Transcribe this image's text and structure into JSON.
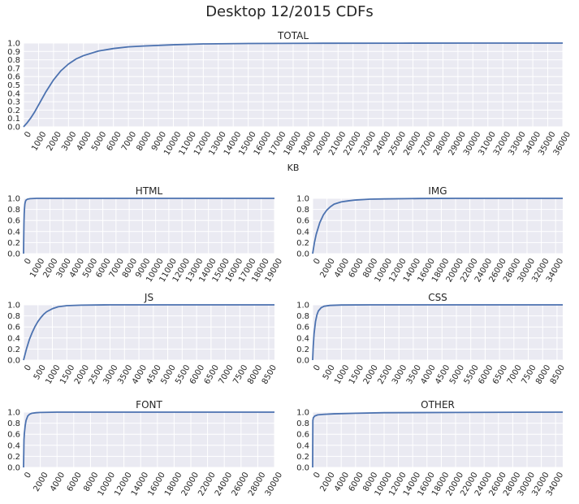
{
  "figure": {
    "title": "Desktop 12/2015 CDFs"
  },
  "style": {
    "background": "#EAEAF2",
    "grid": "#FFFFFF",
    "line": "#4C72B0",
    "text": "#262626"
  },
  "chart_data": [
    {
      "type": "line",
      "title": "TOTAL",
      "xlabel": "KB",
      "ylabel": "",
      "xlim": [
        0,
        36000
      ],
      "ylim": [
        0,
        1.0
      ],
      "xticks": [
        0,
        1000,
        2000,
        3000,
        4000,
        5000,
        6000,
        7000,
        8000,
        9000,
        10000,
        11000,
        12000,
        13000,
        14000,
        15000,
        16000,
        17000,
        18000,
        19000,
        20000,
        21000,
        22000,
        23000,
        24000,
        25000,
        26000,
        27000,
        28000,
        29000,
        30000,
        31000,
        32000,
        33000,
        34000,
        35000,
        36000
      ],
      "yticks": [
        0.0,
        0.1,
        0.2,
        0.3,
        0.4,
        0.5,
        0.6,
        0.7,
        0.8,
        0.9,
        1.0
      ],
      "ytick_decimals": 1,
      "grid": true,
      "series": [
        {
          "x": [
            0,
            250,
            500,
            750,
            1000,
            1250,
            1500,
            1750,
            2000,
            2500,
            3000,
            3500,
            4000,
            5000,
            6000,
            7000,
            8000,
            10000,
            12000,
            15000,
            20000,
            25000,
            30000,
            36000
          ],
          "y": [
            0.0,
            0.05,
            0.11,
            0.18,
            0.26,
            0.34,
            0.42,
            0.49,
            0.56,
            0.67,
            0.75,
            0.81,
            0.85,
            0.905,
            0.935,
            0.955,
            0.965,
            0.98,
            0.99,
            0.995,
            0.998,
            0.999,
            1.0,
            1.0
          ]
        }
      ]
    },
    {
      "type": "line",
      "title": "HTML",
      "xlabel": "",
      "ylabel": "",
      "xlim": [
        0,
        19000
      ],
      "ylim": [
        0,
        1.0
      ],
      "xticks": [
        0,
        1000,
        2000,
        3000,
        4000,
        5000,
        6000,
        7000,
        8000,
        9000,
        10000,
        11000,
        12000,
        13000,
        14000,
        15000,
        16000,
        17000,
        18000,
        19000
      ],
      "yticks": [
        0.0,
        0.2,
        0.4,
        0.6,
        0.8,
        1.0
      ],
      "ytick_decimals": 1,
      "grid": true,
      "series": [
        {
          "x": [
            0,
            15,
            30,
            50,
            75,
            100,
            150,
            200,
            300,
            500,
            1000,
            19000
          ],
          "y": [
            0.0,
            0.3,
            0.55,
            0.72,
            0.83,
            0.9,
            0.95,
            0.97,
            0.985,
            0.995,
            1.0,
            1.0
          ]
        }
      ]
    },
    {
      "type": "line",
      "title": "IMG",
      "xlabel": "",
      "ylabel": "",
      "xlim": [
        0,
        35000
      ],
      "ylim": [
        0,
        1.0
      ],
      "xticks": [
        0,
        2000,
        4000,
        6000,
        8000,
        10000,
        12000,
        14000,
        16000,
        18000,
        20000,
        22000,
        24000,
        26000,
        28000,
        30000,
        32000,
        34000
      ],
      "yticks": [
        0.0,
        0.2,
        0.4,
        0.6,
        0.8,
        1.0
      ],
      "ytick_decimals": 1,
      "grid": true,
      "series": [
        {
          "x": [
            0,
            250,
            500,
            1000,
            1500,
            2000,
            2500,
            3000,
            4000,
            5000,
            6000,
            8000,
            10000,
            15000,
            20000,
            35000
          ],
          "y": [
            0.0,
            0.2,
            0.35,
            0.56,
            0.7,
            0.79,
            0.85,
            0.895,
            0.935,
            0.955,
            0.97,
            0.985,
            0.99,
            0.997,
            1.0,
            1.0
          ]
        }
      ]
    },
    {
      "type": "line",
      "title": "JS",
      "xlabel": "",
      "ylabel": "",
      "xlim": [
        0,
        8700
      ],
      "ylim": [
        0,
        1.0
      ],
      "xticks": [
        0,
        500,
        1000,
        1500,
        2000,
        2500,
        3000,
        3500,
        4000,
        4500,
        5000,
        5500,
        6000,
        6500,
        7000,
        7500,
        8000,
        8500
      ],
      "yticks": [
        0.0,
        0.2,
        0.4,
        0.6,
        0.8,
        1.0
      ],
      "ytick_decimals": 1,
      "grid": true,
      "series": [
        {
          "x": [
            0,
            100,
            200,
            300,
            400,
            500,
            600,
            700,
            800,
            1000,
            1200,
            1500,
            2000,
            3000,
            8700
          ],
          "y": [
            0.0,
            0.2,
            0.37,
            0.5,
            0.61,
            0.7,
            0.77,
            0.83,
            0.875,
            0.93,
            0.965,
            0.985,
            0.995,
            1.0,
            1.0
          ]
        }
      ]
    },
    {
      "type": "line",
      "title": "CSS",
      "xlabel": "",
      "ylabel": "",
      "xlim": [
        0,
        8700
      ],
      "ylim": [
        0,
        1.0
      ],
      "xticks": [
        0,
        500,
        1000,
        1500,
        2000,
        2500,
        3000,
        3500,
        4000,
        4500,
        5000,
        5500,
        6000,
        6500,
        7000,
        7500,
        8000,
        8500
      ],
      "yticks": [
        0.0,
        0.2,
        0.4,
        0.6,
        0.8,
        1.0
      ],
      "ytick_decimals": 1,
      "grid": true,
      "series": [
        {
          "x": [
            0,
            20,
            50,
            100,
            150,
            200,
            300,
            400,
            600,
            1000,
            2000,
            8700
          ],
          "y": [
            0.0,
            0.25,
            0.48,
            0.7,
            0.82,
            0.89,
            0.95,
            0.975,
            0.99,
            0.997,
            1.0,
            1.0
          ]
        }
      ]
    },
    {
      "type": "line",
      "title": "FONT",
      "xlabel": "",
      "ylabel": "",
      "xlim": [
        0,
        30000
      ],
      "ylim": [
        0,
        1.0
      ],
      "xticks": [
        0,
        2000,
        4000,
        6000,
        8000,
        10000,
        12000,
        14000,
        16000,
        18000,
        20000,
        22000,
        24000,
        26000,
        28000,
        30000
      ],
      "yticks": [
        0.0,
        0.2,
        0.4,
        0.6,
        0.8,
        1.0
      ],
      "ytick_decimals": 1,
      "grid": true,
      "series": [
        {
          "x": [
            0,
            50,
            100,
            200,
            300,
            500,
            700,
            1000,
            1500,
            2000,
            4000,
            30000
          ],
          "y": [
            0.0,
            0.5,
            0.62,
            0.76,
            0.85,
            0.93,
            0.96,
            0.98,
            0.99,
            0.995,
            1.0,
            1.0
          ]
        }
      ]
    },
    {
      "type": "line",
      "title": "OTHER",
      "xlabel": "",
      "ylabel": "",
      "xlim": [
        0,
        35000
      ],
      "ylim": [
        0,
        1.0
      ],
      "xticks": [
        0,
        2000,
        4000,
        6000,
        8000,
        10000,
        12000,
        14000,
        16000,
        18000,
        20000,
        22000,
        24000,
        26000,
        28000,
        30000,
        32000,
        34000
      ],
      "yticks": [
        0.0,
        0.2,
        0.4,
        0.6,
        0.8,
        1.0
      ],
      "ytick_decimals": 1,
      "grid": true,
      "series": [
        {
          "x": [
            0,
            30,
            100,
            300,
            700,
            1500,
            3000,
            6000,
            10000,
            20000,
            35000
          ],
          "y": [
            0.0,
            0.85,
            0.9,
            0.93,
            0.95,
            0.96,
            0.97,
            0.98,
            0.99,
            0.995,
            1.0
          ]
        }
      ]
    }
  ]
}
